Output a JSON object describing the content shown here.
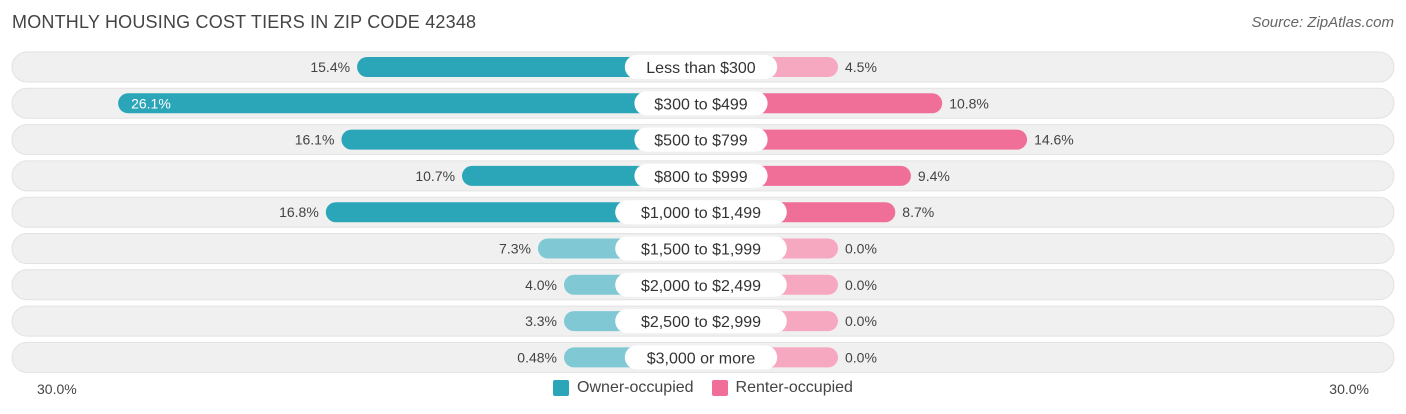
{
  "title": "MONTHLY HOUSING COST TIERS IN ZIP CODE 42348",
  "source": "Source: ZipAtlas.com",
  "colors": {
    "owner": "#2ba5b8",
    "owner_light": "#7fc8d4",
    "renter": "#f06f98",
    "renter_light": "#f7a8c1",
    "row_bg": "#f0f0f0"
  },
  "legend": {
    "owner_label": "Owner-occupied",
    "renter_label": "Renter-occupied"
  },
  "axis": {
    "left_label": "30.0%",
    "right_label": "30.0%"
  },
  "chart_data": {
    "type": "bar",
    "orientation": "horizontal-diverging",
    "xlim": [
      -30,
      30
    ],
    "categories": [
      "Less than $300",
      "$300 to $499",
      "$500 to $799",
      "$800 to $999",
      "$1,000 to $1,499",
      "$1,500 to $1,999",
      "$2,000 to $2,499",
      "$2,500 to $2,999",
      "$3,000 or more"
    ],
    "series": [
      {
        "name": "Owner-occupied",
        "values": [
          15.4,
          26.1,
          16.1,
          10.7,
          16.8,
          7.3,
          4.0,
          3.3,
          0.48
        ],
        "labels": [
          "15.4%",
          "26.1%",
          "16.1%",
          "10.7%",
          "16.8%",
          "7.3%",
          "4.0%",
          "3.3%",
          "0.48%"
        ]
      },
      {
        "name": "Renter-occupied",
        "values": [
          4.5,
          10.8,
          14.6,
          9.4,
          8.7,
          0.0,
          0.0,
          0.0,
          0.0
        ],
        "labels": [
          "4.5%",
          "10.8%",
          "14.6%",
          "9.4%",
          "8.7%",
          "0.0%",
          "0.0%",
          "0.0%",
          "0.0%"
        ]
      }
    ]
  }
}
